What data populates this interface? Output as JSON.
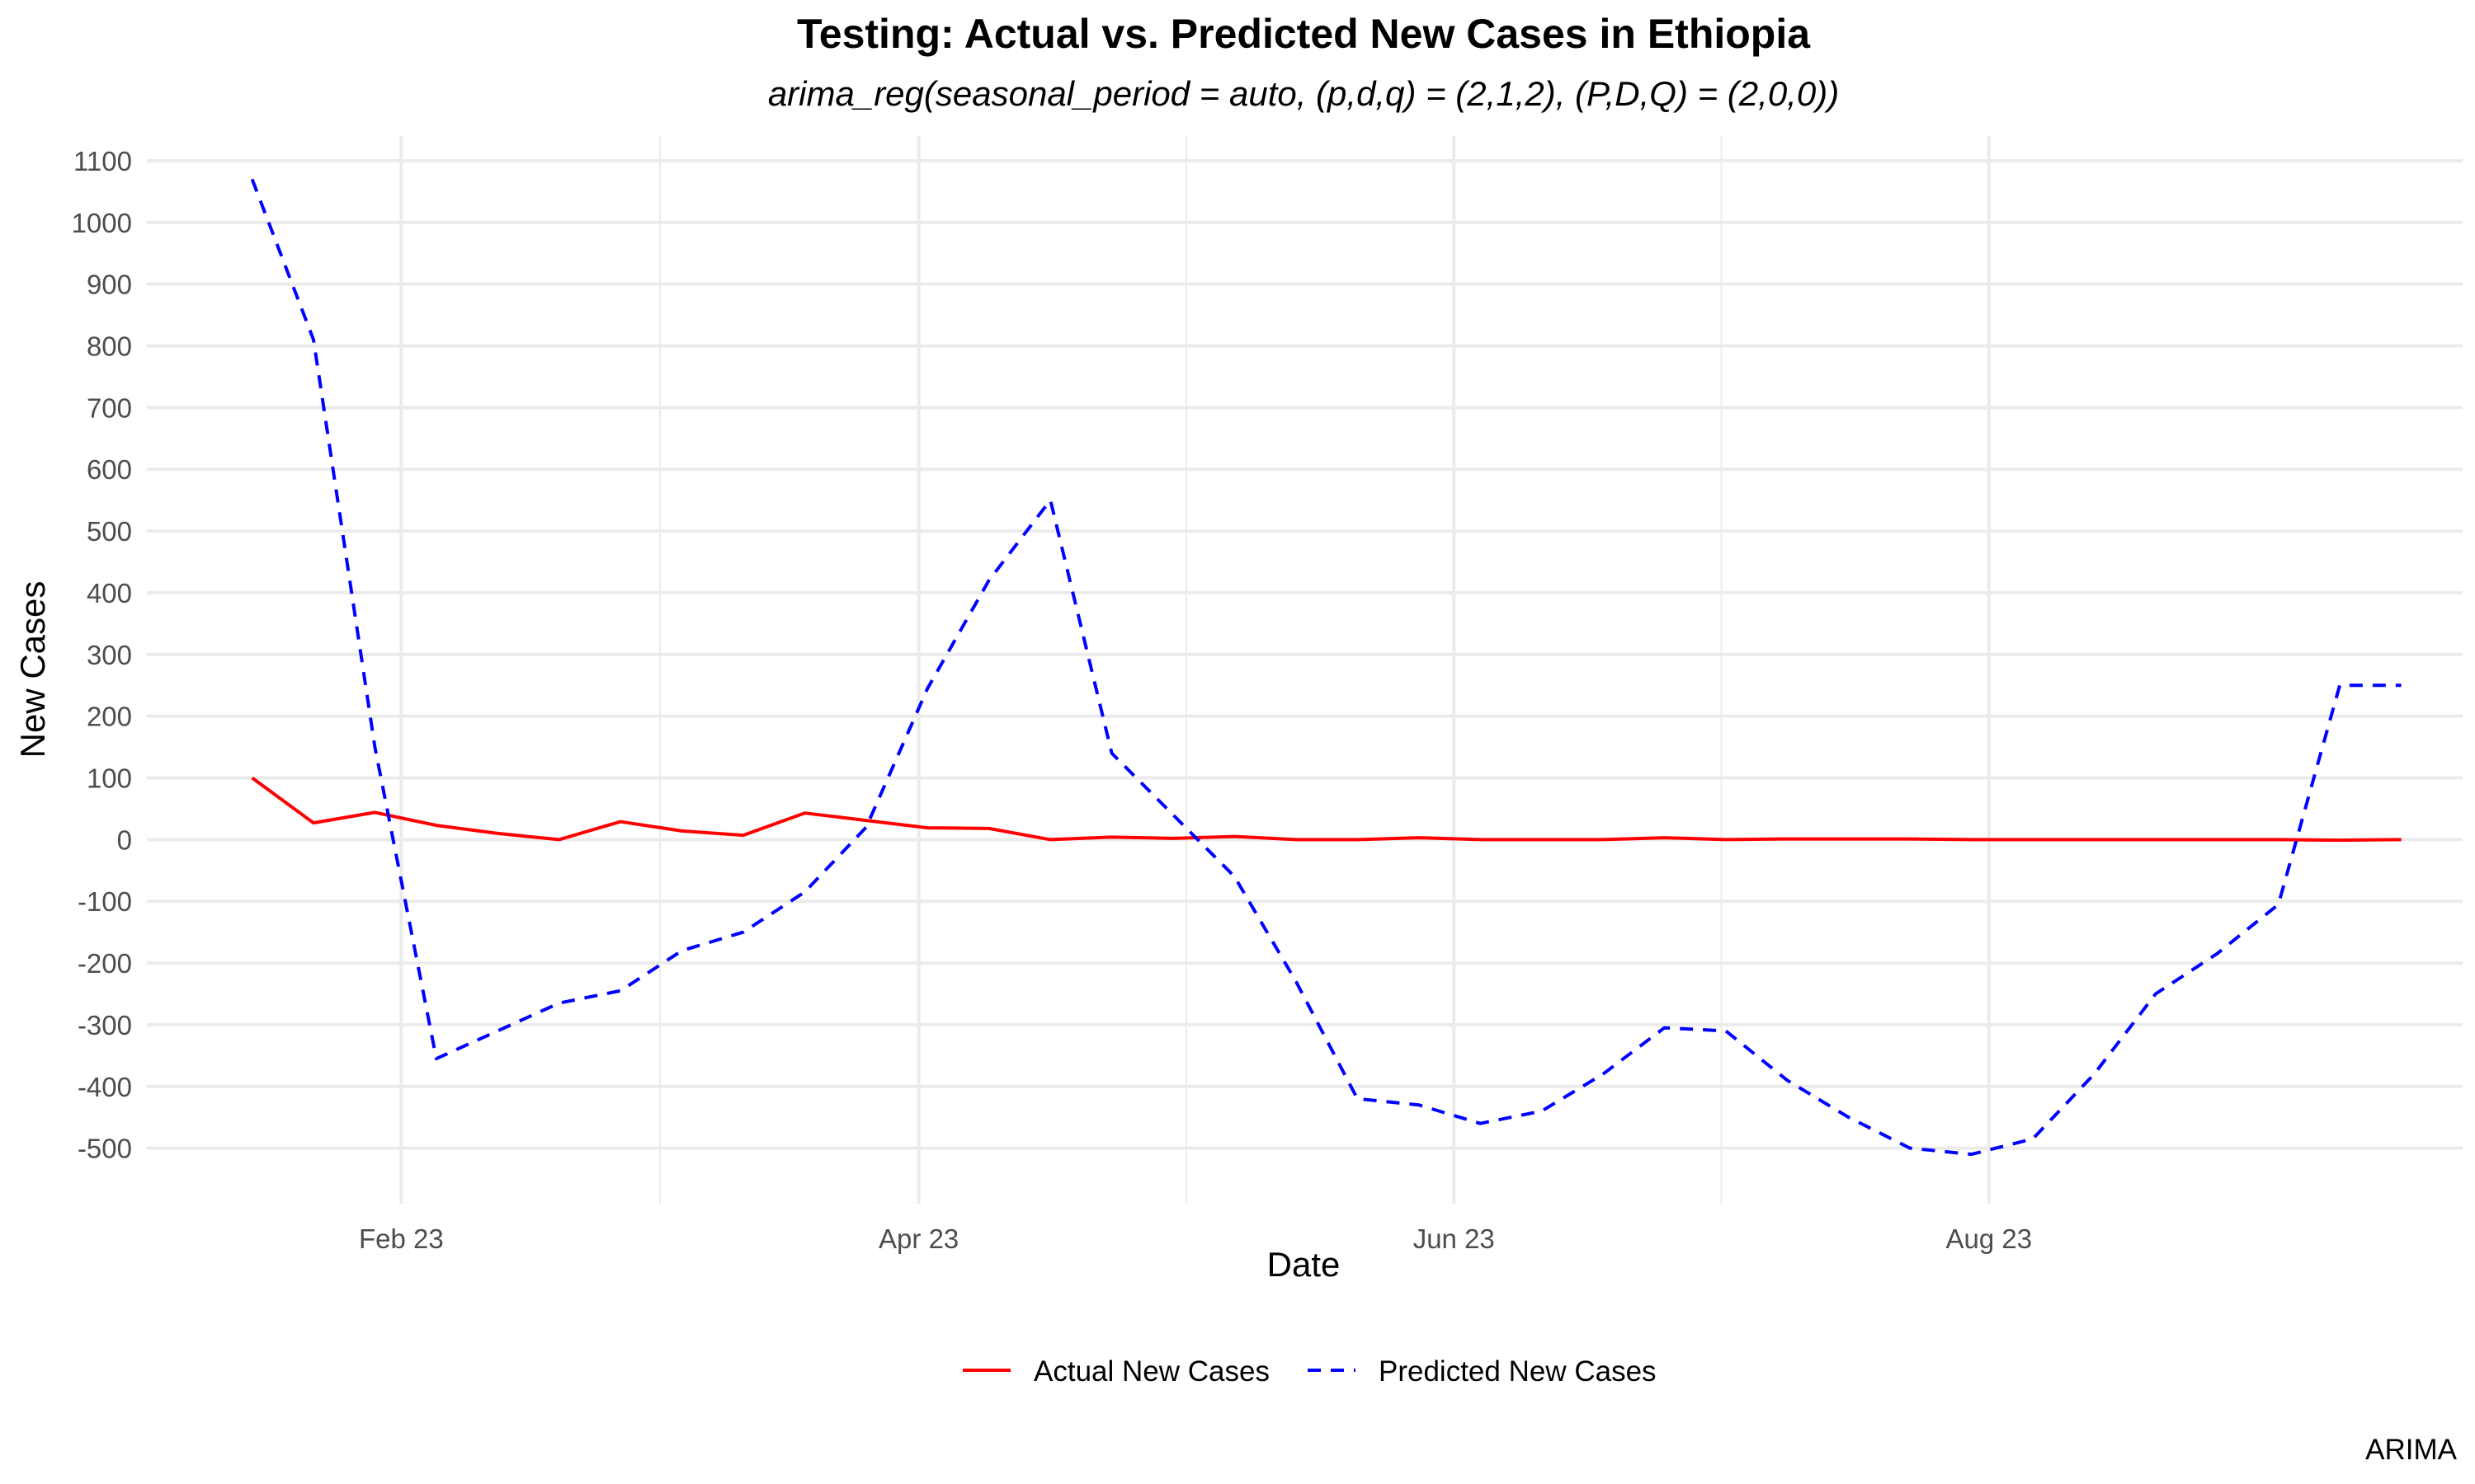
{
  "chart_data": {
    "type": "line",
    "title": "Testing: Actual vs. Predicted New Cases in Ethiopia",
    "subtitle": "arima_reg(seasonal_period = auto, (p,d,q) = (2,1,2), (P,D,Q) = (2,0,0))",
    "xlabel": "Date",
    "ylabel": "New Cases",
    "caption": "ARIMA",
    "legend_position": "bottom",
    "grid": true,
    "xlim": [
      "2023-01-03",
      "2023-09-24"
    ],
    "ylim": [
      -590,
      1140
    ],
    "x_ticks": [
      {
        "date": "2023-02-01",
        "label": "Feb 23"
      },
      {
        "date": "2023-04-01",
        "label": "Apr 23"
      },
      {
        "date": "2023-06-01",
        "label": "Jun 23"
      },
      {
        "date": "2023-08-01",
        "label": "Aug 23"
      }
    ],
    "y_ticks": [
      1100,
      1000,
      900,
      800,
      700,
      600,
      500,
      400,
      300,
      200,
      100,
      0,
      -100,
      -200,
      -300,
      -400,
      -500
    ],
    "x": [
      "2023-01-15",
      "2023-01-22",
      "2023-01-29",
      "2023-02-05",
      "2023-02-12",
      "2023-02-19",
      "2023-02-26",
      "2023-03-05",
      "2023-03-12",
      "2023-03-19",
      "2023-03-26",
      "2023-04-02",
      "2023-04-09",
      "2023-04-16",
      "2023-04-23",
      "2023-04-30",
      "2023-05-07",
      "2023-05-14",
      "2023-05-21",
      "2023-05-28",
      "2023-06-04",
      "2023-06-11",
      "2023-06-18",
      "2023-06-25",
      "2023-07-02",
      "2023-07-09",
      "2023-07-16",
      "2023-07-23",
      "2023-07-30",
      "2023-08-06",
      "2023-08-13",
      "2023-08-20",
      "2023-08-27",
      "2023-09-03",
      "2023-09-10",
      "2023-09-17"
    ],
    "series": [
      {
        "name": "Actual New Cases",
        "color": "#ff0000",
        "dash": "solid",
        "values": [
          100,
          27,
          44,
          23,
          10,
          0,
          29,
          14,
          7,
          43,
          31,
          19,
          18,
          0,
          4,
          2,
          5,
          0,
          0,
          3,
          0,
          0,
          0,
          3,
          0,
          1,
          1,
          1,
          0,
          0,
          0,
          0,
          0,
          0,
          -1,
          0
        ]
      },
      {
        "name": "Predicted New Cases",
        "color": "#0000ff",
        "dash": "dashed",
        "values": [
          1070,
          810,
          150,
          -355,
          -310,
          -265,
          -245,
          -180,
          -150,
          -85,
          20,
          245,
          420,
          550,
          140,
          40,
          -60,
          -230,
          -420,
          -430,
          -460,
          -440,
          -380,
          -305,
          -310,
          -390,
          -450,
          -500,
          -510,
          -485,
          -380,
          -250,
          -185,
          -105,
          250,
          250
        ]
      }
    ]
  }
}
